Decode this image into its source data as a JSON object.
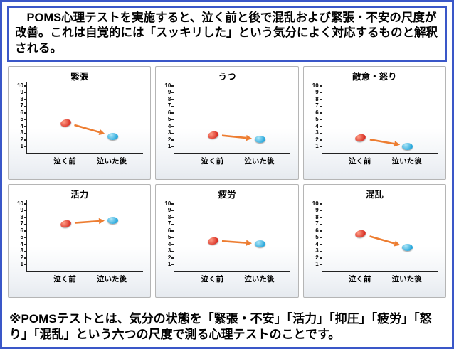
{
  "header": {
    "text": "　POMS心理テストを実施すると、泣く前と後で混乱および緊張・不安の尺度が改善。これは自覚的には「スッキリした」という気分によく対応するものと解釈される。"
  },
  "footer": {
    "text": "※POMSテストとは、気分の状態を「緊張・不安」「活力」「抑圧」「疲労」「怒り」「混乱」という六つの尺度で測る心理テストのことです。"
  },
  "axis": {
    "x_before": "泣く前",
    "x_after": "泣いた後",
    "y_ticks": [
      1,
      2,
      3,
      4,
      5,
      6,
      7,
      8,
      9,
      10
    ]
  },
  "colors": {
    "border_blue": "#3a57c8",
    "before_dot": "#d93025",
    "after_dot": "#29a8dc",
    "arrow": "#ED7D31"
  },
  "chart_data": {
    "type": "scatter",
    "layout": {
      "grid_rows": 2,
      "grid_cols": 3,
      "legend": "none",
      "grid": "off"
    },
    "x_categories": [
      "泣く前",
      "泣いた後"
    ],
    "ylim": [
      0,
      10
    ],
    "charts": [
      {
        "title": "緊張",
        "before": 4.5,
        "after": 2.5
      },
      {
        "title": "うつ",
        "before": 2.7,
        "after": 2.0
      },
      {
        "title": "敵意・怒り",
        "before": 2.2,
        "after": 1.0
      },
      {
        "title": "活力",
        "before": 7.0,
        "after": 7.5
      },
      {
        "title": "疲労",
        "before": 4.5,
        "after": 4.0
      },
      {
        "title": "混乱",
        "before": 5.5,
        "after": 3.5
      }
    ]
  }
}
